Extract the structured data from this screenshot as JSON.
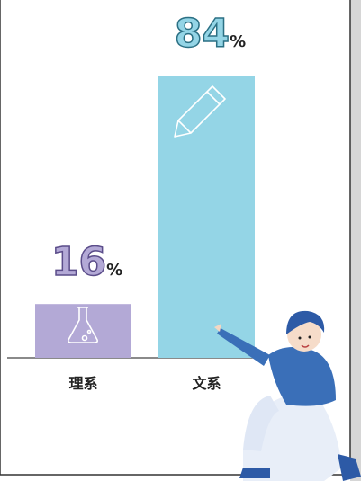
{
  "chart_data": {
    "type": "bar",
    "categories": [
      "理系",
      "文系"
    ],
    "values": [
      16,
      84
    ],
    "value_labels": [
      "16%",
      "84%"
    ],
    "colors": [
      "#b3a9d6",
      "#94d5e6"
    ]
  }
}
